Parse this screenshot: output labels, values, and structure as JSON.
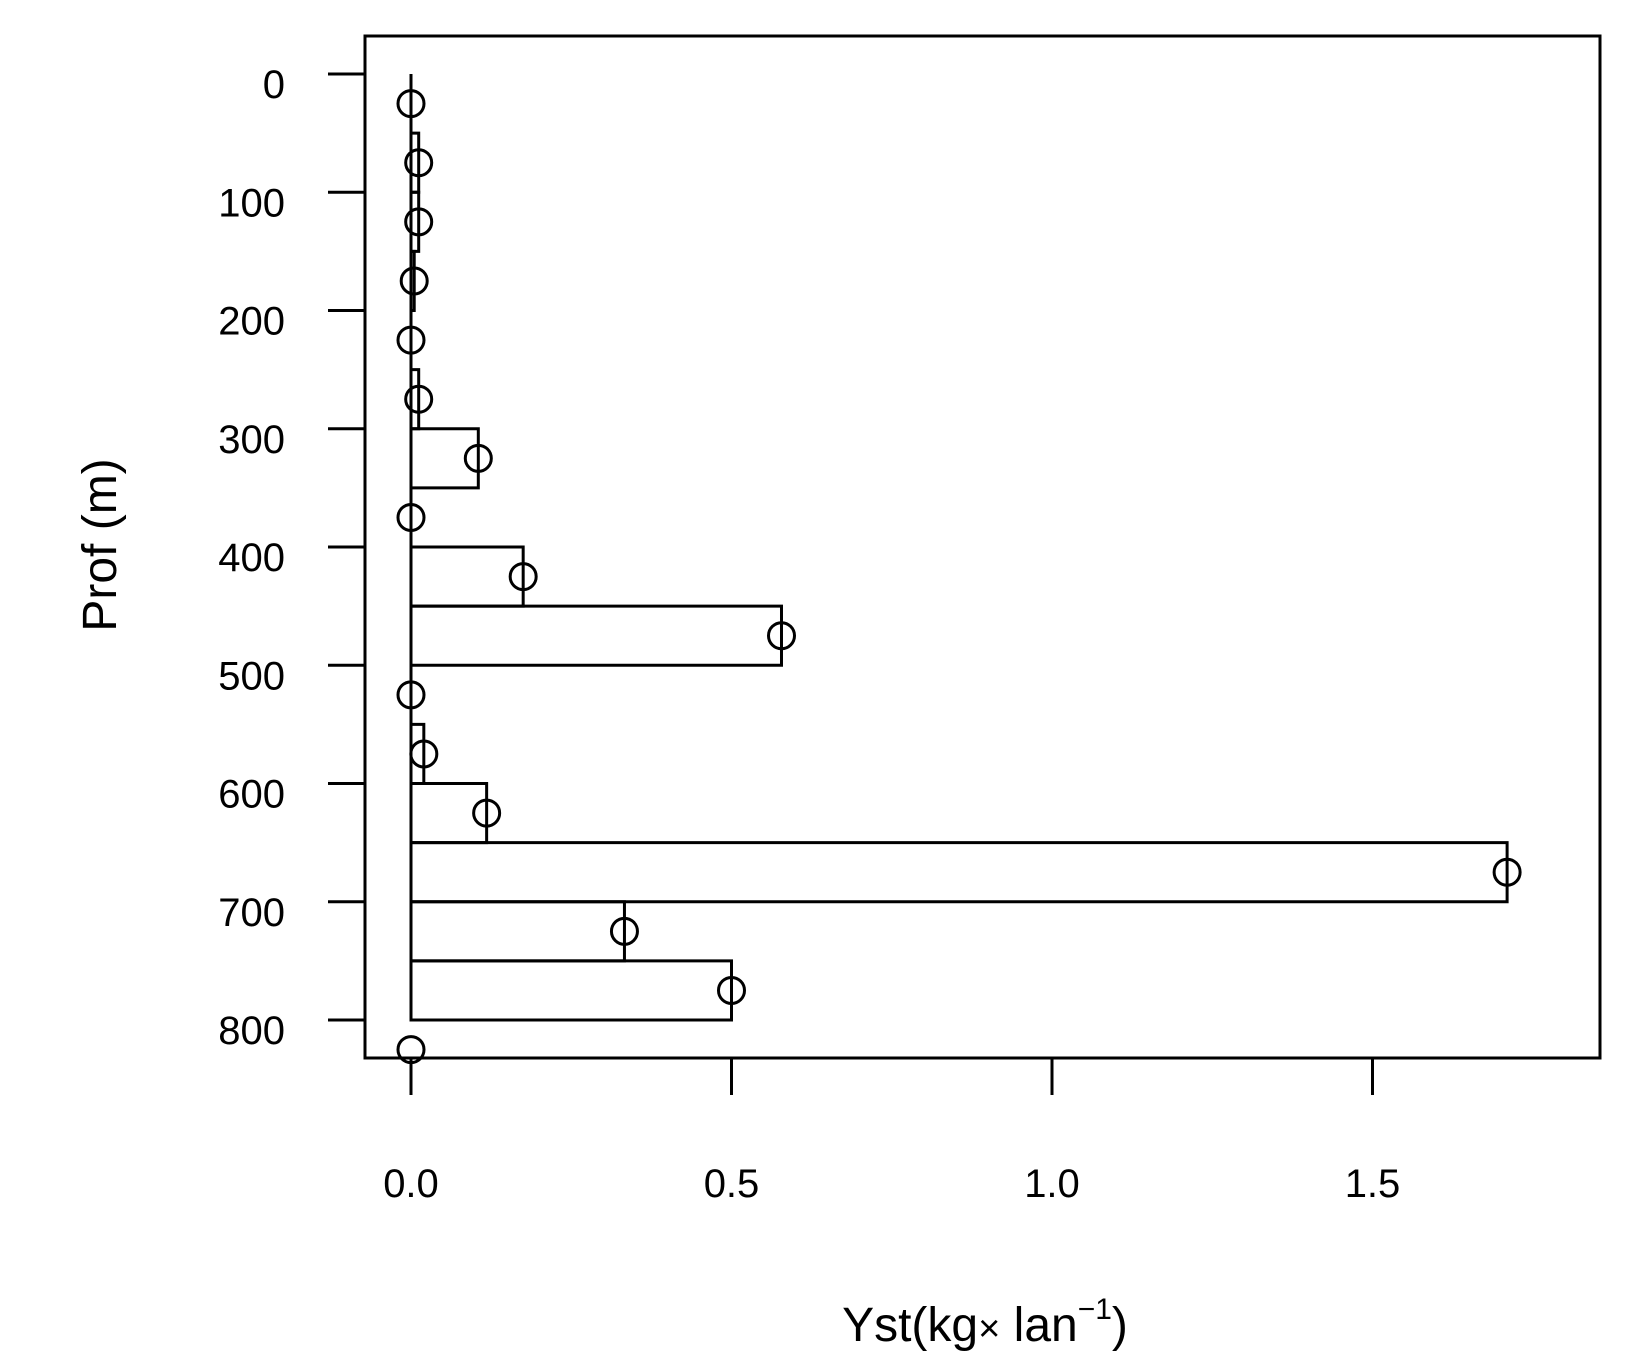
{
  "chart_data": {
    "type": "bar",
    "orientation": "horizontal",
    "xlabel": {
      "main": "Yst(kg",
      "times": "×",
      "unit": " lan",
      "superscript": "−1",
      "close": ")"
    },
    "ylabel": "Prof (m)",
    "y_reversed": true,
    "xlim": [
      -0.07,
      1.87
    ],
    "ylim": [
      0,
      840
    ],
    "xticks": [
      0.0,
      0.5,
      1.0,
      1.5
    ],
    "xtick_labels": [
      "0.0",
      "0.5",
      "1.0",
      "1.5"
    ],
    "yticks": [
      0,
      100,
      200,
      300,
      400,
      500,
      600,
      700,
      800
    ],
    "ytick_labels": [
      "0",
      "100",
      "200",
      "300",
      "400",
      "500",
      "600",
      "700",
      "800"
    ],
    "bin_width": 50,
    "bins": [
      {
        "from": 0,
        "to": 50,
        "value": 0.0
      },
      {
        "from": 50,
        "to": 100,
        "value": 0.012
      },
      {
        "from": 100,
        "to": 150,
        "value": 0.012
      },
      {
        "from": 150,
        "to": 200,
        "value": 0.005
      },
      {
        "from": 200,
        "to": 250,
        "value": 0.0
      },
      {
        "from": 250,
        "to": 300,
        "value": 0.012
      },
      {
        "from": 300,
        "to": 350,
        "value": 0.105
      },
      {
        "from": 350,
        "to": 400,
        "value": 0.0
      },
      {
        "from": 400,
        "to": 450,
        "value": 0.175
      },
      {
        "from": 450,
        "to": 500,
        "value": 0.578
      },
      {
        "from": 500,
        "to": 550,
        "value": 0.0
      },
      {
        "from": 550,
        "to": 600,
        "value": 0.02
      },
      {
        "from": 600,
        "to": 650,
        "value": 0.118
      },
      {
        "from": 650,
        "to": 700,
        "value": 1.71
      },
      {
        "from": 700,
        "to": 750,
        "value": 0.333
      },
      {
        "from": 750,
        "to": 800,
        "value": 0.5
      },
      {
        "from": 800,
        "to": 850,
        "value": 0.0
      }
    ],
    "grid": false,
    "legend": "none"
  }
}
